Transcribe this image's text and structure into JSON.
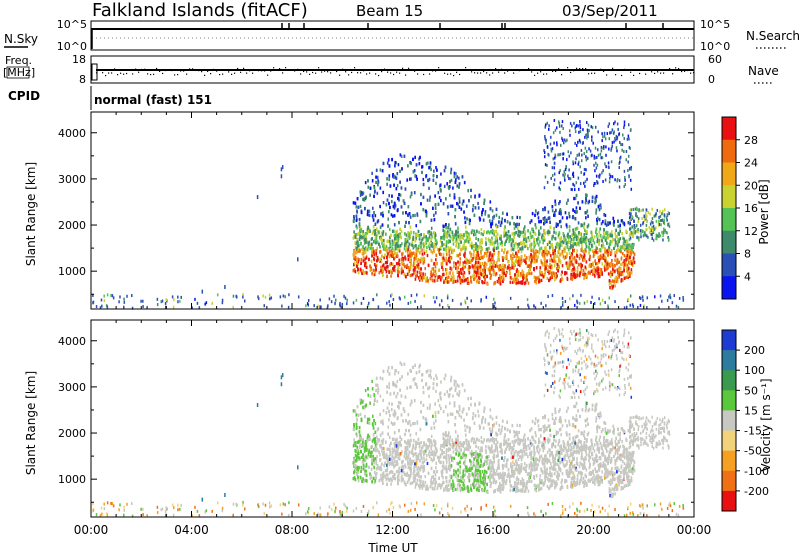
{
  "header": {
    "station": "Falkland Islands (fitACF)",
    "beam": "Beam 15",
    "date": "03/Sep/2011"
  },
  "nsky_panel": {
    "left_label": "N.Sky",
    "right_label": "N.Search",
    "tick_top": "10^5",
    "tick_bottom": "10^0"
  },
  "freq_panel": {
    "left_label_line1": "Freq.",
    "left_label_line2": "[MHz]",
    "left_tick_top": "18",
    "left_tick_bottom": "8",
    "right_label": "Nave",
    "right_tick_top": "60",
    "right_tick_bottom": "0"
  },
  "cpid": {
    "label": "CPID",
    "value": "normal (fast) 151"
  },
  "chart_data": [
    {
      "type": "heatmap",
      "name": "power",
      "ylabel": "Slant Range [km]",
      "yticks": [
        "1000",
        "2000",
        "3000",
        "4000"
      ],
      "colorbar_label": "Power [dB]",
      "colorbar_ticks": [
        "4",
        "8",
        "12",
        "16",
        "20",
        "24",
        "28"
      ],
      "colors": [
        "#0a14f0",
        "#2a4fb6",
        "#3e8a6a",
        "#55c255",
        "#c8d230",
        "#f0a818",
        "#f06a10",
        "#e81010"
      ]
    },
    {
      "type": "heatmap",
      "name": "velocity",
      "ylabel": "Slant Range [km]",
      "yticks": [
        "1000",
        "2000",
        "3000",
        "4000"
      ],
      "colorbar_label": "Velocity [m s⁻¹]",
      "colorbar_ticks": [
        "200",
        "100",
        "50",
        "15",
        "-15",
        "-50",
        "-100",
        "-200"
      ],
      "colors": [
        "#1e3cd2",
        "#2e7ba0",
        "#3a9a50",
        "#5ac83a",
        "#c8c8c2",
        "#f2d27a",
        "#f5a020",
        "#f07015",
        "#e81010"
      ],
      "xlabel": "Time UT",
      "xticks": [
        "00:00",
        "04:00",
        "08:00",
        "12:00",
        "16:00",
        "20:00",
        "00:00"
      ]
    }
  ]
}
